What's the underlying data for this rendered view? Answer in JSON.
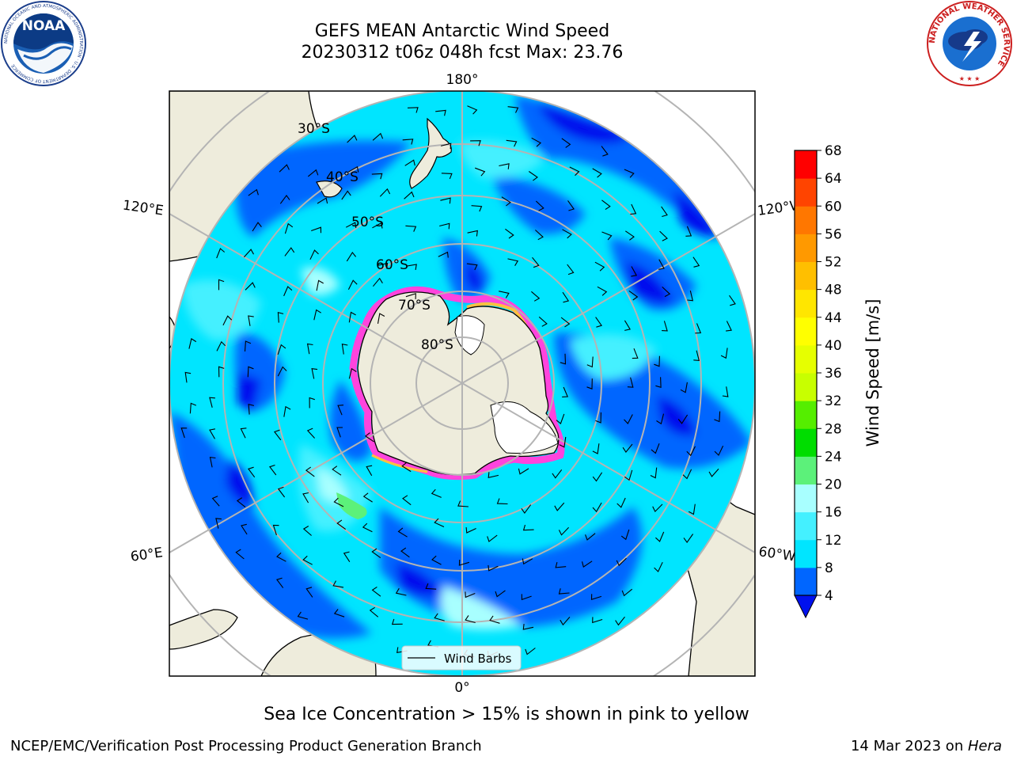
{
  "title": {
    "line1": "GEFS MEAN Antarctic Wind Speed",
    "line2": "20230312 t06z 048h fcst   Max: 23.76"
  },
  "map": {
    "projection": "south polar stereographic",
    "longitude_labels": [
      "180°",
      "120°E",
      "120°W",
      "60°E",
      "60°W",
      "0°"
    ],
    "latitude_labels": [
      "30°S",
      "40°S",
      "50°S",
      "60°S",
      "70°S",
      "80°S"
    ],
    "legend_label": "Wind Barbs",
    "colors": {
      "land": "#eeecdc",
      "ice_sheet_white": "#ffffff",
      "wind_4_8": "#0066ff",
      "wind_8_12": "#00e5ff",
      "wind_12_16": "#44f0ff",
      "wind_16_20": "#a8ffff",
      "wind_20_24": "#5cf17a",
      "below_4": "#0011ee",
      "sea_ice_edge": "#ff44dd",
      "sea_ice_high": "#ffc040",
      "graticule": "#b4b4b4"
    }
  },
  "colorbar": {
    "label": "Wind Speed [m/s]",
    "ticks": [
      "4",
      "8",
      "12",
      "16",
      "20",
      "24",
      "28",
      "32",
      "36",
      "40",
      "44",
      "48",
      "52",
      "56",
      "60",
      "64",
      "68"
    ],
    "colors": [
      "#0066ff",
      "#00e5ff",
      "#44f0ff",
      "#a8ffff",
      "#5cf17a",
      "#00dd00",
      "#55ee00",
      "#c8ff00",
      "#e6ff00",
      "#ffff00",
      "#ffe600",
      "#ffbf00",
      "#ff9900",
      "#ff7700",
      "#ff4400",
      "#ff0000"
    ],
    "extend_below_color": "#0011ee"
  },
  "caption": "Sea Ice Concentration > 15% is shown in pink to yellow",
  "footer": {
    "left": "NCEP/EMC/Verification Post Processing Product Generation Branch",
    "right_prefix": "14 Mar 2023 on ",
    "right_host": "Hera"
  },
  "logos": {
    "noaa_text": "NOAA",
    "noaa_ring_text": "NATIONAL OCEANIC AND ATMOSPHERIC ADMINISTRATION · U.S. DEPARTMENT OF COMMERCE",
    "nws_ring_text": "NATIONAL WEATHER SERVICE"
  }
}
